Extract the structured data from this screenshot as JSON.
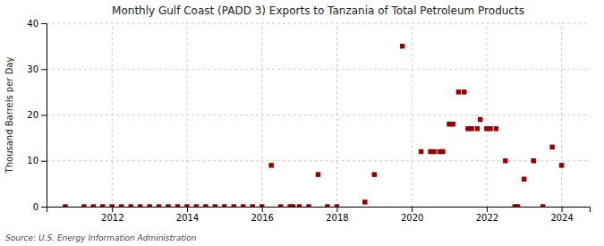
{
  "chart_data": {
    "type": "scatter",
    "title": "Monthly Gulf Coast (PADD 3) Exports to Tanzania of Total Petroleum Products",
    "y_label": "Thousand Barrels per Day",
    "annotations": [
      "Source: U.S. Energy Information Administration"
    ],
    "color": "#990000",
    "marker": "square",
    "grid": true,
    "xlim": [
      2010.25,
      2024.75
    ],
    "ylim": [
      0,
      40
    ],
    "xticks": [
      2012,
      2014,
      2016,
      2018,
      2020,
      2022,
      2024
    ],
    "yticks": [
      0,
      10,
      20,
      30,
      40
    ],
    "x": [
      2010.75,
      2011.25,
      2011.5,
      2011.75,
      2012.0,
      2012.25,
      2012.5,
      2012.75,
      2013.0,
      2013.25,
      2013.5,
      2013.75,
      2014.0,
      2014.25,
      2014.5,
      2014.75,
      2015.0,
      2015.25,
      2015.5,
      2015.75,
      2016.0,
      2016.25,
      2016.5,
      2016.75,
      2016.83,
      2017.0,
      2017.25,
      2017.5,
      2017.75,
      2018.0,
      2018.75,
      2019.0,
      2019.75,
      2020.25,
      2020.5,
      2020.6,
      2020.75,
      2020.83,
      2021.0,
      2021.1,
      2021.25,
      2021.4,
      2021.5,
      2021.6,
      2021.75,
      2021.83,
      2022.0,
      2022.1,
      2022.25,
      2022.5,
      2022.75,
      2022.83,
      2023.0,
      2023.25,
      2023.5,
      2023.75,
      2024.0
    ],
    "values": [
      0,
      0,
      0,
      0,
      0,
      0,
      0,
      0,
      0,
      0,
      0,
      0,
      0,
      0,
      0,
      0,
      0,
      0,
      0,
      0,
      0,
      9,
      0,
      0,
      0,
      0,
      0,
      7,
      0,
      0,
      1,
      7,
      35,
      12,
      12,
      12,
      12,
      12,
      18,
      18,
      25,
      25,
      17,
      17,
      17,
      19,
      17,
      17,
      17,
      10,
      0,
      0,
      6,
      10,
      0,
      13,
      9
    ]
  }
}
